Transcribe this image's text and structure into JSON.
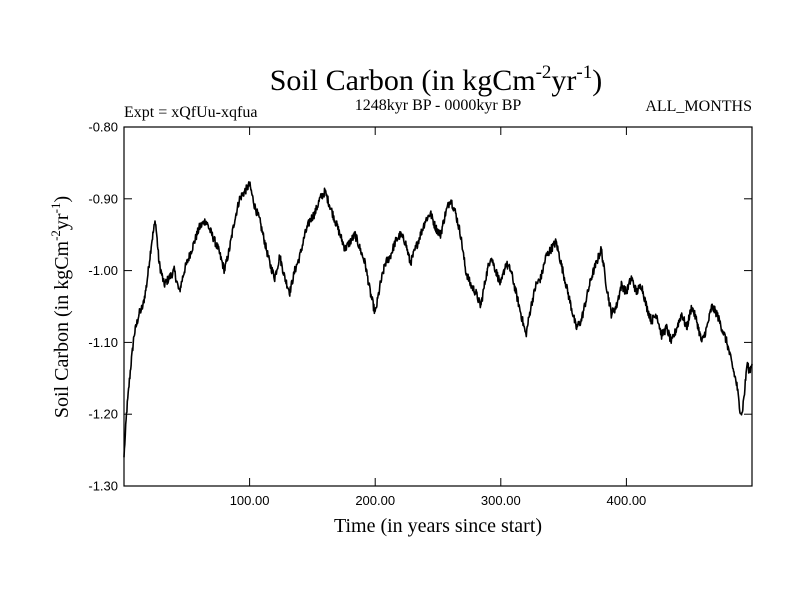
{
  "chart_data": {
    "type": "line",
    "title": {
      "main": "Soil Carbon (in kgCm",
      "exp1": "-2",
      "mid": "yr",
      "exp2": "-1",
      "end": ")"
    },
    "subtitle_left": "Expt = xQfUu-xqfua",
    "subtitle_center": "1248kyr BP - 0000kyr BP",
    "subtitle_right": "ALL_MONTHS",
    "xlabel": "Time (in years since start)",
    "ylabel": {
      "main": "Soil Carbon (in kgCm",
      "exp1": "-2",
      "mid": "yr",
      "exp2": "-1",
      "end": ")"
    },
    "xlim": [
      0,
      500
    ],
    "ylim": [
      -1.3,
      -0.8
    ],
    "x_ticks": [
      100,
      200,
      300,
      400
    ],
    "x_tick_labels": [
      "100.00",
      "200.00",
      "300.00",
      "400.00"
    ],
    "y_ticks": [
      -1.3,
      -1.2,
      -1.1,
      -1.0,
      -0.9,
      -0.8
    ],
    "y_tick_labels": [
      "-1.30",
      "-1.20",
      "-1.10",
      "-1.00",
      "-0.90",
      "-0.80"
    ],
    "series": [
      {
        "name": "Soil Carbon",
        "color": "#000000",
        "x": [
          0,
          2,
          5,
          8,
          12,
          15,
          18,
          20,
          22,
          25,
          28,
          32,
          36,
          40,
          44,
          48,
          52,
          56,
          60,
          65,
          70,
          75,
          80,
          84,
          88,
          92,
          96,
          100,
          104,
          108,
          112,
          116,
          120,
          124,
          128,
          132,
          136,
          140,
          144,
          148,
          152,
          156,
          160,
          164,
          168,
          172,
          176,
          180,
          184,
          188,
          192,
          196,
          200,
          204,
          208,
          212,
          216,
          220,
          224,
          228,
          232,
          236,
          240,
          244,
          248,
          252,
          256,
          260,
          264,
          268,
          272,
          276,
          280,
          284,
          288,
          292,
          296,
          300,
          304,
          308,
          312,
          316,
          320,
          324,
          328,
          332,
          336,
          340,
          344,
          348,
          352,
          356,
          360,
          364,
          368,
          372,
          376,
          380,
          384,
          388,
          392,
          396,
          400,
          404,
          408,
          412,
          416,
          420,
          424,
          428,
          432,
          436,
          440,
          444,
          448,
          452,
          456,
          460,
          464,
          468,
          472,
          476,
          480,
          484,
          488,
          490,
          492,
          494,
          496,
          498,
          500
        ],
        "values": [
          -1.26,
          -1.2,
          -1.14,
          -1.09,
          -1.06,
          -1.05,
          -1.02,
          -0.99,
          -0.96,
          -0.93,
          -0.99,
          -1.02,
          -1.01,
          -1.0,
          -1.03,
          -1.0,
          -0.98,
          -0.96,
          -0.94,
          -0.93,
          -0.95,
          -0.97,
          -1.0,
          -0.97,
          -0.93,
          -0.9,
          -0.89,
          -0.88,
          -0.91,
          -0.93,
          -0.96,
          -0.99,
          -1.01,
          -0.98,
          -1.01,
          -1.03,
          -1.0,
          -0.98,
          -0.95,
          -0.93,
          -0.92,
          -0.9,
          -0.89,
          -0.91,
          -0.93,
          -0.95,
          -0.97,
          -0.96,
          -0.95,
          -0.97,
          -0.99,
          -1.03,
          -1.06,
          -1.02,
          -0.99,
          -0.98,
          -0.96,
          -0.95,
          -0.96,
          -0.99,
          -0.97,
          -0.95,
          -0.93,
          -0.92,
          -0.94,
          -0.95,
          -0.92,
          -0.9,
          -0.92,
          -0.95,
          -1.0,
          -1.02,
          -1.03,
          -1.05,
          -1.01,
          -0.98,
          -1.0,
          -1.02,
          -0.99,
          -1.0,
          -1.03,
          -1.06,
          -1.09,
          -1.05,
          -1.02,
          -1.01,
          -0.98,
          -0.97,
          -0.96,
          -0.99,
          -1.02,
          -1.05,
          -1.08,
          -1.07,
          -1.04,
          -1.01,
          -0.99,
          -0.97,
          -1.02,
          -1.06,
          -1.05,
          -1.02,
          -1.03,
          -1.01,
          -1.03,
          -1.02,
          -1.05,
          -1.07,
          -1.06,
          -1.09,
          -1.08,
          -1.1,
          -1.08,
          -1.06,
          -1.08,
          -1.05,
          -1.07,
          -1.1,
          -1.08,
          -1.05,
          -1.06,
          -1.08,
          -1.1,
          -1.13,
          -1.16,
          -1.19,
          -1.2,
          -1.17,
          -1.13,
          -1.14,
          -1.13
        ]
      }
    ]
  }
}
